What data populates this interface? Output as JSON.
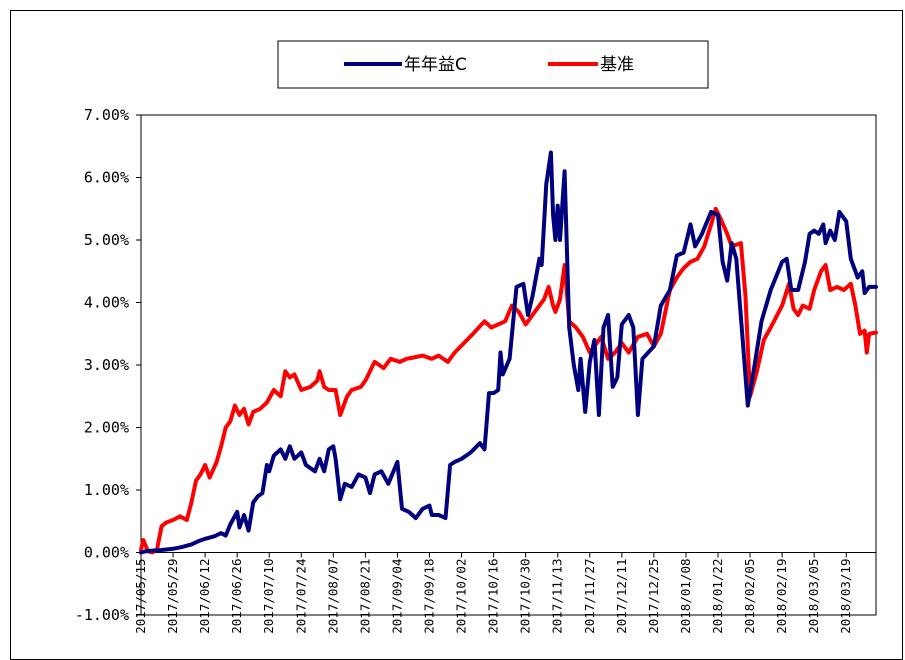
{
  "chart_data": {
    "type": "line",
    "title": "",
    "xlabel": "",
    "ylabel": "",
    "ylim": [
      -0.01,
      0.07
    ],
    "yticks": [
      "-1.00%",
      "0.00%",
      "1.00%",
      "2.00%",
      "3.00%",
      "4.00%",
      "5.00%",
      "6.00%",
      "7.00%"
    ],
    "xticks": [
      "2017/05/15",
      "2017/05/29",
      "2017/06/12",
      "2017/06/26",
      "2017/07/10",
      "2017/07/24",
      "2017/08/07",
      "2017/08/21",
      "2017/09/04",
      "2017/09/18",
      "2017/10/02",
      "2017/10/16",
      "2017/10/30",
      "2017/11/13",
      "2017/11/27",
      "2017/12/11",
      "2017/12/25",
      "2018/01/08",
      "2018/01/22",
      "2018/02/05",
      "2018/02/19",
      "2018/03/05",
      "2018/03/19"
    ],
    "x_range": [
      "2017/05/15",
      "2018/04/01"
    ],
    "grid": false,
    "legend_position": "top-center",
    "series": [
      {
        "name": "年年益C",
        "color": "#00007f",
        "points": [
          [
            "2017/05/15",
            0.0
          ],
          [
            "2017/05/17",
            0.0002
          ],
          [
            "2017/05/20",
            0.0003
          ],
          [
            "2017/05/24",
            0.0004
          ],
          [
            "2017/05/29",
            0.0006
          ],
          [
            "2017/06/02",
            0.0009
          ],
          [
            "2017/06/06",
            0.0013
          ],
          [
            "2017/06/09",
            0.0018
          ],
          [
            "2017/06/12",
            0.0022
          ],
          [
            "2017/06/16",
            0.0026
          ],
          [
            "2017/06/19",
            0.0031
          ],
          [
            "2017/06/21",
            0.0027
          ],
          [
            "2017/06/23",
            0.0045
          ],
          [
            "2017/06/26",
            0.0065
          ],
          [
            "2017/06/27",
            0.004
          ],
          [
            "2017/06/29",
            0.006
          ],
          [
            "2017/07/01",
            0.0035
          ],
          [
            "2017/07/03",
            0.008
          ],
          [
            "2017/07/05",
            0.009
          ],
          [
            "2017/07/07",
            0.0095
          ],
          [
            "2017/07/09",
            0.014
          ],
          [
            "2017/07/10",
            0.013
          ],
          [
            "2017/07/12",
            0.0155
          ],
          [
            "2017/07/15",
            0.0165
          ],
          [
            "2017/07/17",
            0.015
          ],
          [
            "2017/07/19",
            0.017
          ],
          [
            "2017/07/21",
            0.015
          ],
          [
            "2017/07/24",
            0.016
          ],
          [
            "2017/07/26",
            0.014
          ],
          [
            "2017/07/30",
            0.013
          ],
          [
            "2017/08/01",
            0.015
          ],
          [
            "2017/08/03",
            0.013
          ],
          [
            "2017/08/05",
            0.0165
          ],
          [
            "2017/08/07",
            0.017
          ],
          [
            "2017/08/08",
            0.015
          ],
          [
            "2017/08/10",
            0.0085
          ],
          [
            "2017/08/12",
            0.011
          ],
          [
            "2017/08/15",
            0.0105
          ],
          [
            "2017/08/18",
            0.0125
          ],
          [
            "2017/08/21",
            0.012
          ],
          [
            "2017/08/23",
            0.0095
          ],
          [
            "2017/08/25",
            0.0125
          ],
          [
            "2017/08/28",
            0.013
          ],
          [
            "2017/08/31",
            0.011
          ],
          [
            "2017/09/04",
            0.0145
          ],
          [
            "2017/09/06",
            0.007
          ],
          [
            "2017/09/09",
            0.0065
          ],
          [
            "2017/09/12",
            0.0055
          ],
          [
            "2017/09/15",
            0.007
          ],
          [
            "2017/09/18",
            0.0075
          ],
          [
            "2017/09/19",
            0.006
          ],
          [
            "2017/09/22",
            0.006
          ],
          [
            "2017/09/25",
            0.0055
          ],
          [
            "2017/09/27",
            0.014
          ],
          [
            "2017/09/29",
            0.0145
          ],
          [
            "2017/10/02",
            0.015
          ],
          [
            "2017/10/06",
            0.016
          ],
          [
            "2017/10/10",
            0.0175
          ],
          [
            "2017/10/12",
            0.0165
          ],
          [
            "2017/10/14",
            0.0255
          ],
          [
            "2017/10/16",
            0.0255
          ],
          [
            "2017/10/18",
            0.026
          ],
          [
            "2017/10/19",
            0.032
          ],
          [
            "2017/10/20",
            0.0285
          ],
          [
            "2017/10/23",
            0.031
          ],
          [
            "2017/10/26",
            0.0425
          ],
          [
            "2017/10/29",
            0.043
          ],
          [
            "2017/10/31",
            0.038
          ],
          [
            "2017/11/02",
            0.041
          ],
          [
            "2017/11/05",
            0.047
          ],
          [
            "2017/11/06",
            0.046
          ],
          [
            "2017/11/08",
            0.059
          ],
          [
            "2017/11/10",
            0.064
          ],
          [
            "2017/11/11",
            0.054
          ],
          [
            "2017/11/12",
            0.05
          ],
          [
            "2017/11/13",
            0.0555
          ],
          [
            "2017/11/14",
            0.05
          ],
          [
            "2017/11/16",
            0.061
          ],
          [
            "2017/11/18",
            0.036
          ],
          [
            "2017/11/20",
            0.03
          ],
          [
            "2017/11/22",
            0.026
          ],
          [
            "2017/11/23",
            0.031
          ],
          [
            "2017/11/25",
            0.0225
          ],
          [
            "2017/11/27",
            0.0305
          ],
          [
            "2017/11/29",
            0.034
          ],
          [
            "2017/12/01",
            0.022
          ],
          [
            "2017/12/03",
            0.036
          ],
          [
            "2017/12/05",
            0.038
          ],
          [
            "2017/12/07",
            0.0265
          ],
          [
            "2017/12/09",
            0.028
          ],
          [
            "2017/12/11",
            0.0365
          ],
          [
            "2017/12/14",
            0.038
          ],
          [
            "2017/12/16",
            0.036
          ],
          [
            "2017/12/18",
            0.022
          ],
          [
            "2017/12/20",
            0.031
          ],
          [
            "2017/12/25",
            0.033
          ],
          [
            "2017/12/28",
            0.0395
          ],
          [
            "2018/01/01",
            0.042
          ],
          [
            "2018/01/04",
            0.0475
          ],
          [
            "2018/01/07",
            0.048
          ],
          [
            "2018/01/10",
            0.0525
          ],
          [
            "2018/01/12",
            0.049
          ],
          [
            "2018/01/15",
            0.051
          ],
          [
            "2018/01/19",
            0.0545
          ],
          [
            "2018/01/22",
            0.054
          ],
          [
            "2018/01/24",
            0.0465
          ],
          [
            "2018/01/26",
            0.0435
          ],
          [
            "2018/01/28",
            0.0495
          ],
          [
            "2018/01/30",
            0.047
          ],
          [
            "2018/02/02",
            0.033
          ],
          [
            "2018/02/04",
            0.0235
          ],
          [
            "2018/02/07",
            0.03
          ],
          [
            "2018/02/10",
            0.037
          ],
          [
            "2018/02/14",
            0.042
          ],
          [
            "2018/02/19",
            0.0465
          ],
          [
            "2018/02/21",
            0.047
          ],
          [
            "2018/02/23",
            0.042
          ],
          [
            "2018/02/26",
            0.042
          ],
          [
            "2018/03/01",
            0.0465
          ],
          [
            "2018/03/03",
            0.051
          ],
          [
            "2018/03/05",
            0.0515
          ],
          [
            "2018/03/07",
            0.051
          ],
          [
            "2018/03/09",
            0.0525
          ],
          [
            "2018/03/10",
            0.0495
          ],
          [
            "2018/03/12",
            0.0515
          ],
          [
            "2018/03/14",
            0.05
          ],
          [
            "2018/03/16",
            0.0545
          ],
          [
            "2018/03/19",
            0.053
          ],
          [
            "2018/03/21",
            0.047
          ],
          [
            "2018/03/24",
            0.044
          ],
          [
            "2018/03/26",
            0.045
          ],
          [
            "2018/03/27",
            0.0415
          ],
          [
            "2018/03/29",
            0.0425
          ],
          [
            "2018/04/01",
            0.0425
          ]
        ]
      },
      {
        "name": "基准",
        "color": "#ff0000",
        "points": [
          [
            "2017/05/15",
            0.0005
          ],
          [
            "2017/05/16",
            0.002
          ],
          [
            "2017/05/18",
            0.0002
          ],
          [
            "2017/05/20",
            0.0
          ],
          [
            "2017/05/22",
            0.0005
          ],
          [
            "2017/05/24",
            0.0042
          ],
          [
            "2017/05/26",
            0.0048
          ],
          [
            "2017/05/29",
            0.0052
          ],
          [
            "2017/06/01",
            0.0058
          ],
          [
            "2017/06/04",
            0.0052
          ],
          [
            "2017/06/06",
            0.008
          ],
          [
            "2017/06/08",
            0.0115
          ],
          [
            "2017/06/10",
            0.0125
          ],
          [
            "2017/06/12",
            0.014
          ],
          [
            "2017/06/14",
            0.012
          ],
          [
            "2017/06/17",
            0.0145
          ],
          [
            "2017/06/19",
            0.017
          ],
          [
            "2017/06/21",
            0.02
          ],
          [
            "2017/06/23",
            0.021
          ],
          [
            "2017/06/25",
            0.0235
          ],
          [
            "2017/06/27",
            0.022
          ],
          [
            "2017/06/29",
            0.023
          ],
          [
            "2017/07/01",
            0.0205
          ],
          [
            "2017/07/03",
            0.0225
          ],
          [
            "2017/07/06",
            0.023
          ],
          [
            "2017/07/09",
            0.024
          ],
          [
            "2017/07/12",
            0.026
          ],
          [
            "2017/07/15",
            0.025
          ],
          [
            "2017/07/17",
            0.029
          ],
          [
            "2017/07/19",
            0.028
          ],
          [
            "2017/07/21",
            0.0285
          ],
          [
            "2017/07/24",
            0.026
          ],
          [
            "2017/07/28",
            0.0265
          ],
          [
            "2017/07/31",
            0.0275
          ],
          [
            "2017/08/01",
            0.029
          ],
          [
            "2017/08/03",
            0.0265
          ],
          [
            "2017/08/05",
            0.026
          ],
          [
            "2017/08/08",
            0.026
          ],
          [
            "2017/08/10",
            0.022
          ],
          [
            "2017/08/13",
            0.025
          ],
          [
            "2017/08/15",
            0.026
          ],
          [
            "2017/08/19",
            0.0265
          ],
          [
            "2017/08/21",
            0.0275
          ],
          [
            "2017/08/23",
            0.029
          ],
          [
            "2017/08/25",
            0.0305
          ],
          [
            "2017/08/29",
            0.0295
          ],
          [
            "2017/09/01",
            0.031
          ],
          [
            "2017/09/05",
            0.0305
          ],
          [
            "2017/09/08",
            0.031
          ],
          [
            "2017/09/11",
            0.0312
          ],
          [
            "2017/09/15",
            0.0315
          ],
          [
            "2017/09/19",
            0.031
          ],
          [
            "2017/09/22",
            0.0315
          ],
          [
            "2017/09/26",
            0.0305
          ],
          [
            "2017/09/29",
            0.032
          ],
          [
            "2017/10/03",
            0.0335
          ],
          [
            "2017/10/07",
            0.035
          ],
          [
            "2017/10/12",
            0.037
          ],
          [
            "2017/10/15",
            0.036
          ],
          [
            "2017/10/18",
            0.0365
          ],
          [
            "2017/10/21",
            0.037
          ],
          [
            "2017/10/24",
            0.0395
          ],
          [
            "2017/10/27",
            0.0385
          ],
          [
            "2017/10/30",
            0.0365
          ],
          [
            "2017/11/02",
            0.038
          ],
          [
            "2017/11/05",
            0.0395
          ],
          [
            "2017/11/07",
            0.0405
          ],
          [
            "2017/11/09",
            0.0425
          ],
          [
            "2017/11/11",
            0.0395
          ],
          [
            "2017/11/12",
            0.0385
          ],
          [
            "2017/11/14",
            0.0405
          ],
          [
            "2017/11/16",
            0.046
          ],
          [
            "2017/11/18",
            0.037
          ],
          [
            "2017/11/21",
            0.036
          ],
          [
            "2017/11/24",
            0.0345
          ],
          [
            "2017/11/27",
            0.032
          ],
          [
            "2017/11/30",
            0.0335
          ],
          [
            "2017/12/02",
            0.0345
          ],
          [
            "2017/12/05",
            0.031
          ],
          [
            "2017/12/08",
            0.032
          ],
          [
            "2017/12/11",
            0.0335
          ],
          [
            "2017/12/14",
            0.032
          ],
          [
            "2017/12/18",
            0.0345
          ],
          [
            "2017/12/22",
            0.035
          ],
          [
            "2017/12/25",
            0.033
          ],
          [
            "2017/12/28",
            0.035
          ],
          [
            "2018/01/01",
            0.042
          ],
          [
            "2018/01/04",
            0.044
          ],
          [
            "2018/01/07",
            0.0455
          ],
          [
            "2018/01/10",
            0.0465
          ],
          [
            "2018/01/13",
            0.047
          ],
          [
            "2018/01/16",
            0.049
          ],
          [
            "2018/01/19",
            0.0525
          ],
          [
            "2018/01/21",
            0.055
          ],
          [
            "2018/01/23",
            0.0535
          ],
          [
            "2018/01/26",
            0.051
          ],
          [
            "2018/01/28",
            0.049
          ],
          [
            "2018/02/01",
            0.0495
          ],
          [
            "2018/02/03",
            0.041
          ],
          [
            "2018/02/05",
            0.025
          ],
          [
            "2018/02/08",
            0.029
          ],
          [
            "2018/02/11",
            0.034
          ],
          [
            "2018/02/14",
            0.036
          ],
          [
            "2018/02/19",
            0.0395
          ],
          [
            "2018/02/22",
            0.043
          ],
          [
            "2018/02/24",
            0.039
          ],
          [
            "2018/02/26",
            0.038
          ],
          [
            "2018/02/28",
            0.0395
          ],
          [
            "2018/03/03",
            0.039
          ],
          [
            "2018/03/05",
            0.042
          ],
          [
            "2018/03/08",
            0.045
          ],
          [
            "2018/03/10",
            0.046
          ],
          [
            "2018/03/12",
            0.042
          ],
          [
            "2018/03/15",
            0.0425
          ],
          [
            "2018/03/18",
            0.042
          ],
          [
            "2018/03/21",
            0.043
          ],
          [
            "2018/03/23",
            0.0395
          ],
          [
            "2018/03/25",
            0.035
          ],
          [
            "2018/03/27",
            0.0355
          ],
          [
            "2018/03/28",
            0.032
          ],
          [
            "2018/03/29",
            0.035
          ],
          [
            "2018/04/01",
            0.0352
          ]
        ]
      }
    ]
  }
}
